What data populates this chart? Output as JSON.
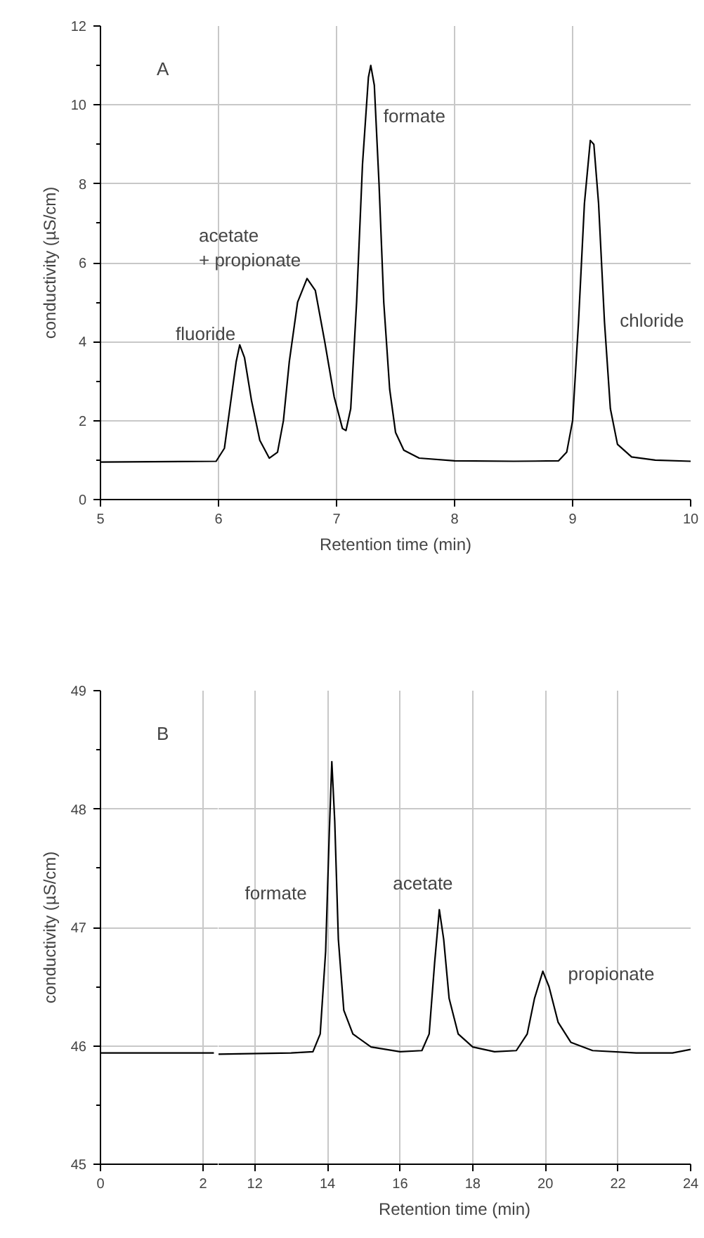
{
  "chart_data": [
    {
      "type": "line",
      "title": "A",
      "xlabel": "Retention time (min)",
      "ylabel": "conductivity (µS/cm)",
      "xlim": [
        5,
        10
      ],
      "ylim": [
        0,
        12
      ],
      "xticks": [
        5,
        6,
        7,
        8,
        9,
        10
      ],
      "yticks": [
        0,
        2,
        4,
        6,
        8,
        10,
        12
      ],
      "grid": true,
      "line_style": "solid",
      "series": [
        {
          "color": "#000000",
          "x": [
            5.0,
            5.98,
            6.05,
            6.1,
            6.15,
            6.18,
            6.22,
            6.28,
            6.35,
            6.43,
            6.5,
            6.55,
            6.6,
            6.67,
            6.75,
            6.82,
            6.9,
            6.98,
            7.05,
            7.08,
            7.12,
            7.17,
            7.22,
            7.27,
            7.29,
            7.32,
            7.36,
            7.4,
            7.45,
            7.5,
            7.57,
            7.7,
            8.0,
            8.5,
            8.88,
            8.95,
            9.0,
            9.05,
            9.1,
            9.15,
            9.18,
            9.22,
            9.27,
            9.32,
            9.38,
            9.5,
            9.7,
            10.0
          ],
          "values": [
            0.95,
            0.97,
            1.3,
            2.4,
            3.5,
            3.92,
            3.6,
            2.5,
            1.5,
            1.05,
            1.2,
            2.0,
            3.5,
            5.0,
            5.6,
            5.3,
            4.0,
            2.6,
            1.8,
            1.75,
            2.3,
            5.0,
            8.5,
            10.7,
            11.0,
            10.5,
            8.0,
            5.0,
            2.8,
            1.7,
            1.25,
            1.05,
            0.98,
            0.97,
            0.98,
            1.2,
            2.0,
            4.5,
            7.5,
            9.1,
            9.0,
            7.5,
            4.5,
            2.3,
            1.4,
            1.08,
            1.0,
            0.97
          ]
        }
      ],
      "annotations": [
        {
          "text": "fluoride",
          "x": 6.18,
          "y": 3.92
        },
        {
          "text": "acetate\n+ propionate",
          "x": 6.75,
          "y": 5.6
        },
        {
          "text": "formate",
          "x": 7.29,
          "y": 11.0
        },
        {
          "text": "chloride",
          "x": 9.27,
          "y": 4.5
        }
      ]
    },
    {
      "type": "line",
      "title": "B",
      "ylabel": "conductivity (µS/cm)",
      "xlim": [
        0,
        2.3
      ],
      "ylim": [
        45,
        49
      ],
      "xticks": [
        0,
        2
      ],
      "yticks": [
        45,
        46,
        47,
        48,
        49
      ],
      "grid": true,
      "line_style": "solid",
      "series": [
        {
          "color": "#000000",
          "x": [
            0,
            2.21
          ],
          "values": [
            45.94,
            45.94
          ]
        }
      ]
    },
    {
      "type": "line",
      "xlabel": "Retention time (min)",
      "xlim": [
        11,
        24
      ],
      "ylim": [
        45,
        49
      ],
      "xticks": [
        12,
        14,
        16,
        18,
        20,
        22,
        24
      ],
      "yticks": [
        45,
        46,
        47,
        48,
        49
      ],
      "grid": true,
      "tick_labels": "x",
      "line_style": "solid",
      "series": [
        {
          "color": "#000000",
          "x": [
            11.0,
            13.0,
            13.6,
            13.8,
            13.95,
            14.05,
            14.12,
            14.2,
            14.3,
            14.45,
            14.7,
            15.2,
            16.0,
            16.6,
            16.8,
            16.95,
            17.08,
            17.2,
            17.35,
            17.6,
            18.0,
            18.6,
            19.2,
            19.5,
            19.7,
            19.93,
            20.1,
            20.35,
            20.7,
            21.3,
            22.5,
            23.5,
            24.0
          ],
          "values": [
            45.93,
            45.94,
            45.95,
            46.1,
            46.8,
            47.8,
            48.4,
            47.9,
            46.9,
            46.3,
            46.1,
            45.99,
            45.95,
            45.96,
            46.1,
            46.7,
            47.15,
            46.9,
            46.4,
            46.1,
            45.99,
            45.95,
            45.96,
            46.1,
            46.4,
            46.63,
            46.5,
            46.2,
            46.03,
            45.96,
            45.94,
            45.94,
            45.97
          ]
        }
      ],
      "annotations": [
        {
          "text": "formate",
          "x": 14.05,
          "y": 47.8
        },
        {
          "text": "acetate",
          "x": 17.08,
          "y": 47.15
        },
        {
          "text": "propionate",
          "x": 19.93,
          "y": 46.63
        }
      ]
    }
  ]
}
